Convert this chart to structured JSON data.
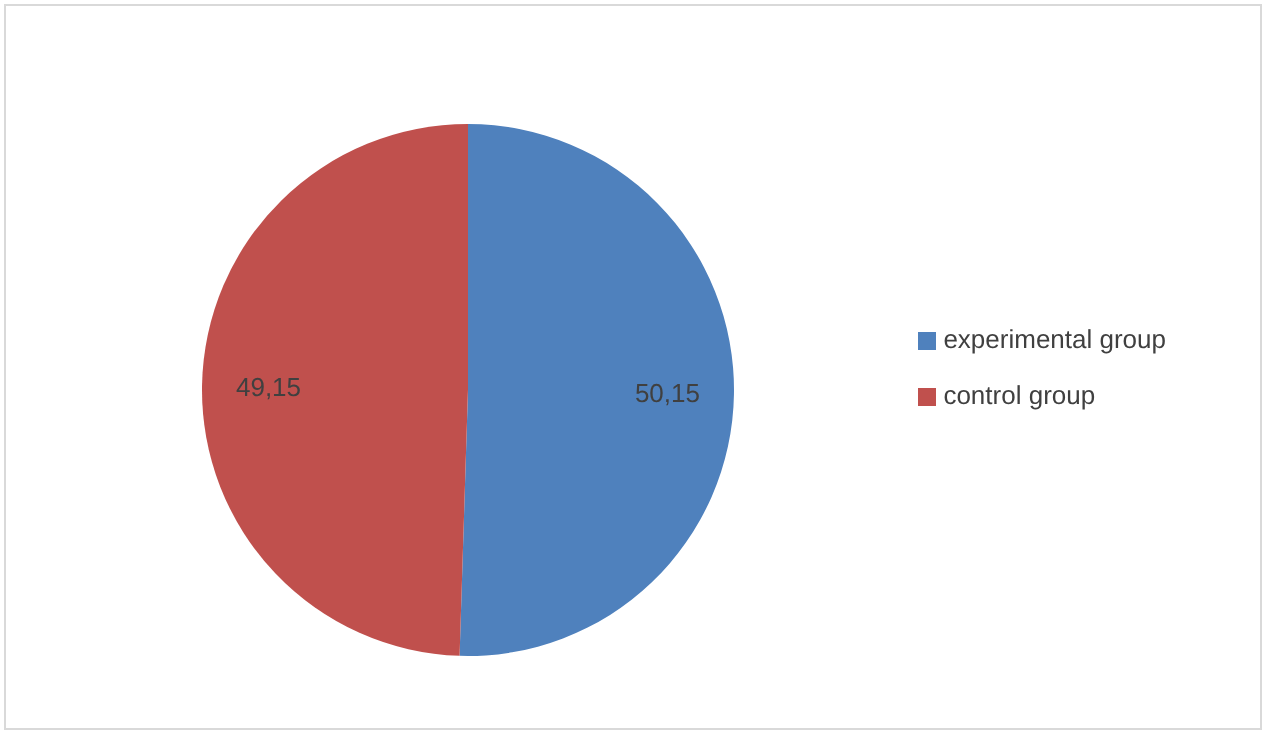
{
  "chart_data": {
    "type": "pie",
    "categories": [
      "experimental group",
      "control group"
    ],
    "values": [
      50.15,
      49.15
    ],
    "colors": [
      "#4f81bd",
      "#c0504d"
    ],
    "value_labels": [
      "50,15",
      "49,15"
    ],
    "legend": "right"
  }
}
